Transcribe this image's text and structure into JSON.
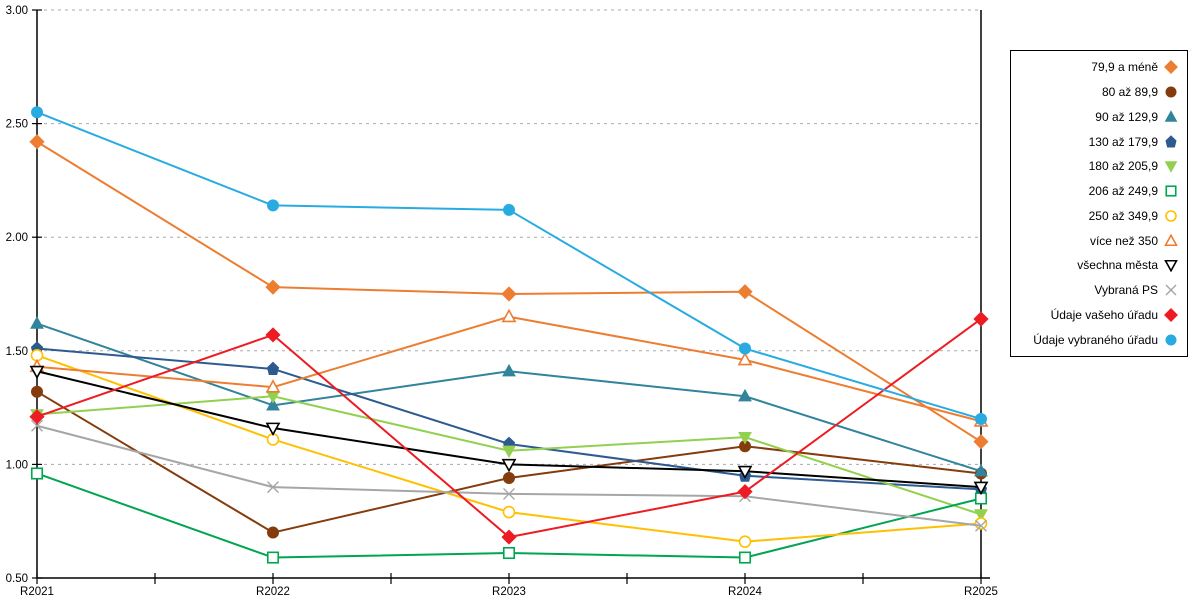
{
  "chart_data": {
    "type": "line",
    "categories": [
      "R2021",
      "R2022",
      "R2023",
      "R2024",
      "R2025"
    ],
    "ylim": [
      0.5,
      3.0
    ],
    "ytick_step": 0.5,
    "ytick_labels": [
      "0.50",
      "1.00",
      "1.50",
      "2.00",
      "2.50",
      "3.00"
    ],
    "grid": "horizontal-dashed",
    "legend_position": "right",
    "axis_color": "#000000",
    "grid_color": "#aaaaaa",
    "series": [
      {
        "name": "79,9 a méně",
        "marker": "diamond",
        "filled": true,
        "color": "#ED7D31",
        "values": [
          2.42,
          1.78,
          1.75,
          1.76,
          1.1
        ]
      },
      {
        "name": "80 až 89,9",
        "marker": "circle",
        "filled": true,
        "color": "#843C0C",
        "values": [
          1.32,
          0.7,
          0.94,
          1.08,
          0.96
        ]
      },
      {
        "name": "90 až 129,9",
        "marker": "triangle-up",
        "filled": true,
        "color": "#31849B",
        "values": [
          1.62,
          1.26,
          1.41,
          1.3,
          0.97
        ]
      },
      {
        "name": "130 až 179,9",
        "marker": "pentagon",
        "filled": true,
        "color": "#2E5B8F",
        "values": [
          1.51,
          1.42,
          1.09,
          0.95,
          0.89
        ]
      },
      {
        "name": "180 až 205,9",
        "marker": "triangle-down",
        "filled": true,
        "color": "#92D050",
        "values": [
          1.22,
          1.3,
          1.06,
          1.12,
          0.78
        ]
      },
      {
        "name": "206 až 249,9",
        "marker": "square",
        "filled": false,
        "color": "#00A550",
        "values": [
          0.96,
          0.59,
          0.61,
          0.59,
          0.85
        ]
      },
      {
        "name": "250 až 349,9",
        "marker": "circle",
        "filled": false,
        "color": "#FFC000",
        "values": [
          1.48,
          1.11,
          0.79,
          0.66,
          0.74
        ]
      },
      {
        "name": "více než 350",
        "marker": "triangle-up",
        "filled": false,
        "color": "#ED7D31",
        "values": [
          1.43,
          1.34,
          1.65,
          1.46,
          1.19
        ]
      },
      {
        "name": "všechna města",
        "marker": "triangle-down",
        "filled": false,
        "color": "#000000",
        "values": [
          1.41,
          1.16,
          1.0,
          0.97,
          0.9
        ]
      },
      {
        "name": "Vybraná PS",
        "marker": "x",
        "filled": false,
        "color": "#A6A6A6",
        "values": [
          1.17,
          0.9,
          0.87,
          0.86,
          0.73
        ]
      },
      {
        "name": "Údaje vašeho úřadu",
        "marker": "diamond",
        "filled": true,
        "color": "#ED1C24",
        "values": [
          1.21,
          1.57,
          0.68,
          0.88,
          1.64
        ]
      },
      {
        "name": "Údaje vybraného úřadu",
        "marker": "circle",
        "filled": true,
        "color": "#29ABE2",
        "values": [
          2.55,
          2.14,
          2.12,
          1.51,
          1.2
        ]
      }
    ]
  }
}
